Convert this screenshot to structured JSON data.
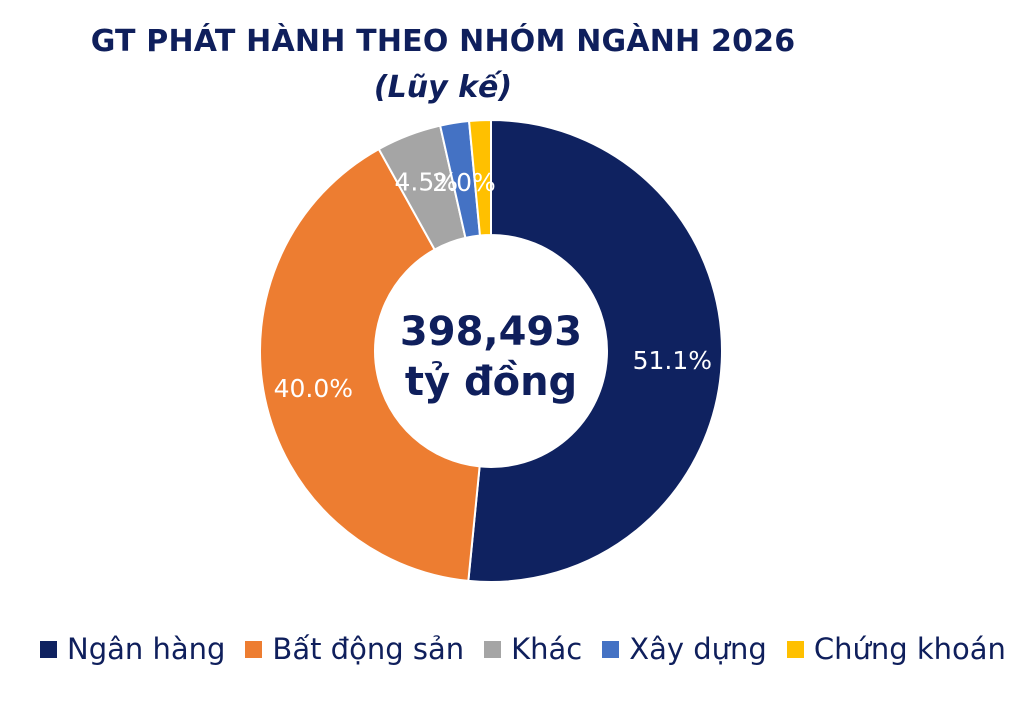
{
  "chart_data": {
    "type": "pie",
    "title": "GT PHÁT HÀNH THEO NHÓM NGÀNH 2026",
    "subtitle": "(Lũy kế)",
    "center_value": "398,493",
    "center_unit": "tỷ đồng",
    "slices": [
      {
        "name": "Ngân hàng",
        "value": 51.1,
        "label": "51.1%",
        "color": "#0f2260"
      },
      {
        "name": "Bất động sản",
        "value": 40.0,
        "label": "40.0%",
        "color": "#ed7d31"
      },
      {
        "name": "Khác",
        "value": 4.5,
        "label": "4.5%",
        "color": "#a5a5a5"
      },
      {
        "name": "Xây dựng",
        "value": 2.0,
        "label": "2.0%",
        "color": "#4472c4"
      },
      {
        "name": "Chứng khoán",
        "value": 1.5,
        "label": "",
        "color": "#ffc000"
      }
    ],
    "legend_position": "bottom"
  }
}
